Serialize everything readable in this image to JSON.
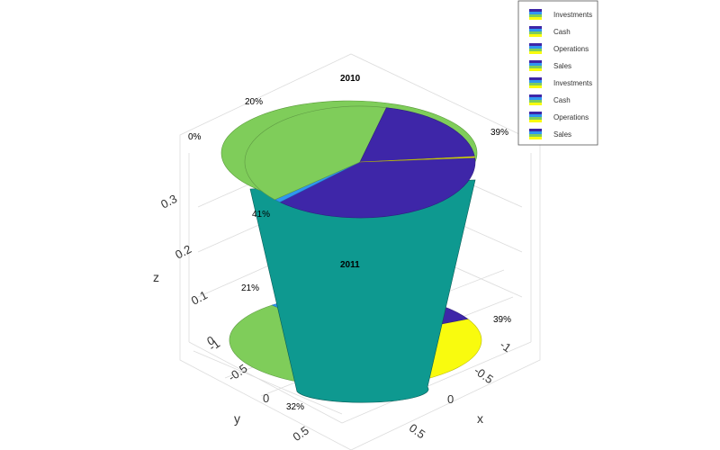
{
  "chart_data": {
    "type": "pie",
    "style": "3d-pie-cylinder",
    "charts": [
      {
        "title": "2010",
        "slices": [
          {
            "label": "Sales",
            "value": 39,
            "pct_label": "39%",
            "color": "#3e26a8"
          },
          {
            "label": "Cash",
            "value": 1,
            "pct_label": "",
            "color": "#2f97f0"
          },
          {
            "label": "Operations",
            "value": 41,
            "pct_label": "41%",
            "color": "#7fcd5a"
          },
          {
            "label": "Investments",
            "value": 20,
            "pct_label": "20%",
            "color": "#3e26a8"
          },
          {
            "label": "Cash",
            "value": 0,
            "pct_label": "0%",
            "color": "#f9fb0e"
          }
        ]
      },
      {
        "title": "2011",
        "slices": [
          {
            "label": "Sales",
            "value": 39,
            "pct_label": "39%",
            "color": "#f9fb0e"
          },
          {
            "label": "Investments",
            "value": 32,
            "pct_label": "32%",
            "color": "#7fcd5a"
          },
          {
            "label": "Cash",
            "value": 8,
            "pct_label": "",
            "color": "#2f97f0"
          },
          {
            "label": "Operations",
            "value": 21,
            "pct_label": "21%",
            "color": "#3e26a8"
          }
        ]
      }
    ],
    "axes": {
      "x": {
        "label": "x",
        "ticks": [
          "-1",
          "-0.5",
          "0",
          "0.5"
        ]
      },
      "y": {
        "label": "y",
        "ticks": [
          "-1",
          "-0.5",
          "0",
          "0.5"
        ]
      },
      "z": {
        "label": "z",
        "ticks": [
          "0",
          "0.1",
          "0.2",
          "0.3"
        ]
      }
    },
    "legend": {
      "placement": "top-right",
      "entries": [
        "Investments",
        "Cash",
        "Operations",
        "Sales",
        "Investments",
        "Cash",
        "Operations",
        "Sales"
      ]
    }
  }
}
